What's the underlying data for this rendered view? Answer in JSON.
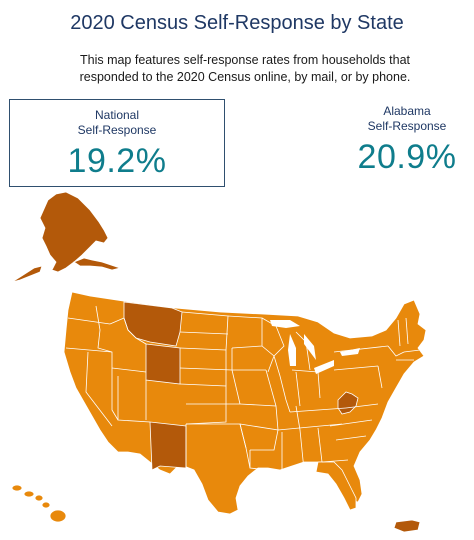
{
  "title": "2020 Census Self-Response by State",
  "subtitle_line1": "This map features self-response rates from households that",
  "subtitle_line2": "responded to the 2020 Census online, by mail, or by phone.",
  "national": {
    "label_line1": "National",
    "label_line2": "Self-Response",
    "value": "19.2%"
  },
  "selected_state": {
    "label_line1": "Alabama",
    "label_line2": "Self-Response",
    "value": "20.9%"
  },
  "colors": {
    "base": "#e8890c",
    "dark": "#b3590a",
    "border": "#ffffff",
    "title": "#1f3864",
    "value": "#0f7d8c"
  },
  "map": {
    "darker_shaded_regions": [
      "Alaska",
      "Montana",
      "Wyoming",
      "New Mexico",
      "West Virginia",
      "Puerto Rico"
    ]
  }
}
